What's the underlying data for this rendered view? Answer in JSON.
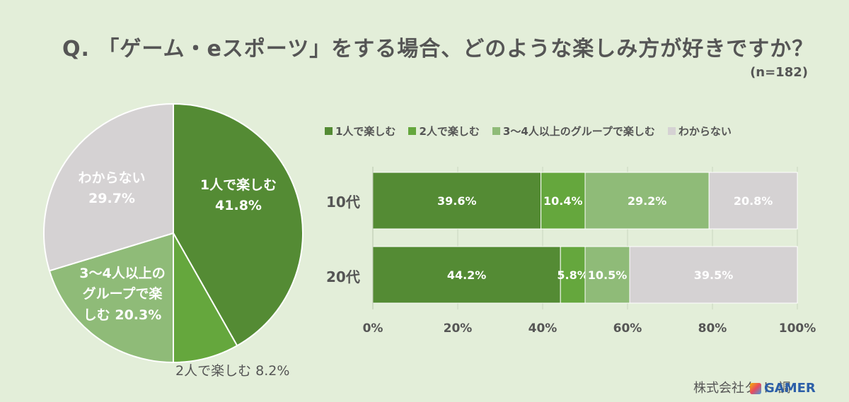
{
  "title": "Q. 「ゲーム・eスポーツ」をする場合、どのような楽しみ方が好きですか？",
  "sample_size": "(n=182)",
  "credit": "株式会社タ ト 調",
  "logo_text": "GAMER",
  "colors": {
    "solo": "#548b34",
    "duo": "#65a73d",
    "group": "#8fbb78",
    "unknown": "#d5d2d3",
    "background": "#e3eed9"
  },
  "chart_data": [
    {
      "type": "pie",
      "slices": [
        {
          "label": "1人で楽しむ",
          "value": 41.8,
          "display": "41.8%"
        },
        {
          "label": "2人で楽しむ",
          "value": 8.2,
          "display": "8.2%"
        },
        {
          "label": "3〜4人以上のグループで楽しむ",
          "value": 20.3,
          "display": "20.3%"
        },
        {
          "label": "わからない",
          "value": 29.7,
          "display": "29.7%"
        }
      ],
      "labels_printed": {
        "solo": [
          "1人で楽しむ",
          "41.8%"
        ],
        "duo": [
          "2人で楽しむ 8.2%"
        ],
        "group": [
          "3〜4人以上の",
          "グループで楽",
          "しむ 20.3%"
        ],
        "unknown": [
          "わからない",
          "29.7%"
        ]
      }
    },
    {
      "type": "bar",
      "orientation": "horizontal",
      "stacked": true,
      "categories": [
        "10代",
        "20代"
      ],
      "series": [
        {
          "name": "1人で楽しむ",
          "values": [
            39.6,
            44.2
          ]
        },
        {
          "name": "2人で楽しむ",
          "values": [
            10.4,
            5.8
          ]
        },
        {
          "name": "3〜4人以上のグループで楽しむ",
          "values": [
            29.2,
            10.5
          ]
        },
        {
          "name": "わからない",
          "values": [
            20.8,
            39.5
          ]
        }
      ],
      "xlim": [
        0,
        100
      ],
      "x_ticks": [
        "0%",
        "20%",
        "40%",
        "60%",
        "80%",
        "100%"
      ],
      "legend_position": "top",
      "grid": true
    }
  ]
}
